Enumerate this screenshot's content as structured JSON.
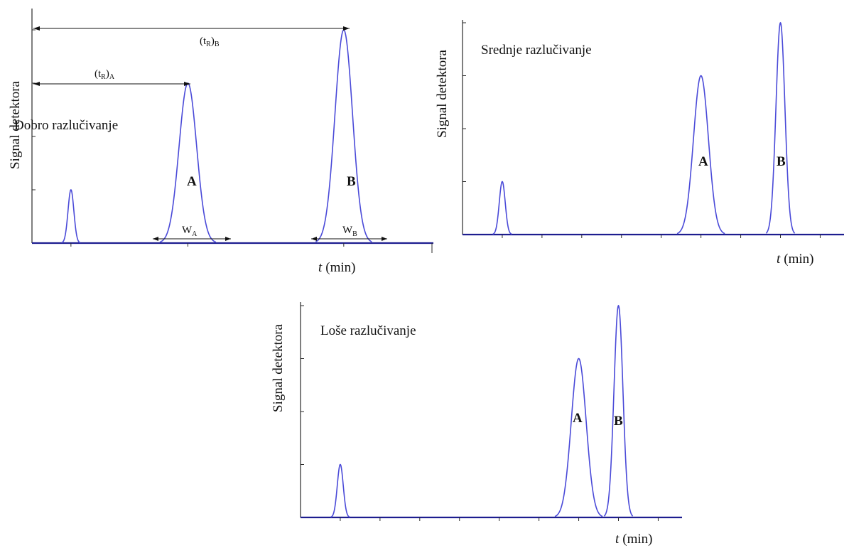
{
  "chart_data": [
    {
      "type": "line",
      "title": "Dobro razlučivanje",
      "xlabel_italic": "t",
      "xlabel_unit": "(min)",
      "ylabel": "Signal detektora",
      "ylim": [
        0,
        4
      ],
      "series": [
        {
          "label": "",
          "center": 1.0,
          "height": 1.0,
          "width": 0.3
        },
        {
          "label": "A",
          "center": 4.0,
          "height": 3.0,
          "width": 0.9
        },
        {
          "label": "B",
          "center": 8.0,
          "height": 4.0,
          "width": 0.9
        }
      ],
      "annotations": {
        "tRA": {
          "base": "(t",
          "sub": "R",
          "tail": ")",
          "sub2": "A"
        },
        "tRB": {
          "base": "(t",
          "sub": "R",
          "tail": ")",
          "sub2": "B"
        },
        "WA": {
          "base": "W",
          "sub": "A"
        },
        "WB": {
          "base": "W",
          "sub": "B"
        }
      }
    },
    {
      "type": "line",
      "title": "Srednje razlučivanje",
      "xlabel_italic": "t",
      "xlabel_unit": "(min)",
      "ylabel": "Signal detektora",
      "ylim": [
        0,
        4
      ],
      "series": [
        {
          "label": "",
          "center": 1.0,
          "height": 1.0,
          "width": 0.3
        },
        {
          "label": "A",
          "center": 6.0,
          "height": 3.0,
          "width": 0.75
        },
        {
          "label": "B",
          "center": 8.0,
          "height": 4.0,
          "width": 0.45
        }
      ]
    },
    {
      "type": "line",
      "title": "Loše razlučivanje",
      "xlabel_italic": "t",
      "xlabel_unit": "(min)",
      "ylabel": "Signal detektora",
      "ylim": [
        0,
        4
      ],
      "series": [
        {
          "label": "",
          "center": 1.0,
          "height": 1.0,
          "width": 0.3
        },
        {
          "label": "A",
          "center": 7.0,
          "height": 3.0,
          "width": 0.75
        },
        {
          "label": "B",
          "center": 8.0,
          "height": 4.0,
          "width": 0.45
        }
      ]
    }
  ]
}
